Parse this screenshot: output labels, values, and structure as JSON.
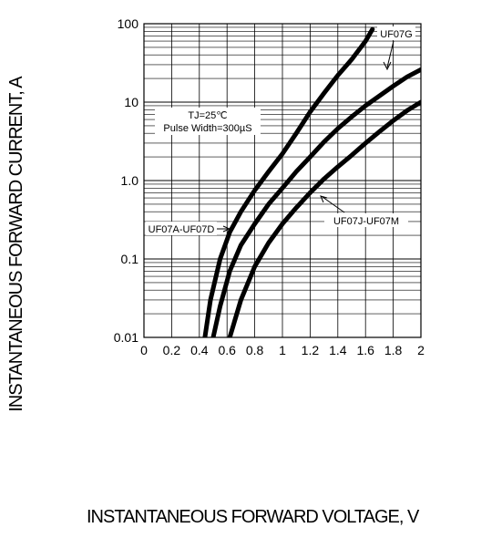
{
  "chart_data": {
    "type": "line",
    "title": "",
    "xlabel": "INSTANTANEOUS FORWARD VOLTAGE, V",
    "ylabel": "INSTANTANEOUS FORWARD CURRENT, A",
    "xlim": [
      0,
      2
    ],
    "ylim": [
      0.01,
      100
    ],
    "y_scale": "log",
    "grid": true,
    "x_ticks": [
      "0",
      "0.2",
      "0.4",
      "0.6",
      "0.8",
      "1",
      "1.2",
      "1.4",
      "1.6",
      "1.8",
      "2"
    ],
    "y_ticks": [
      "0.01",
      "0.1",
      "1.0",
      "10",
      "100"
    ],
    "conditions": [
      "TJ=25℃",
      "Pulse Width=300µS"
    ],
    "series": [
      {
        "name": "UF07A-UF07D",
        "x": [
          0.44,
          0.48,
          0.55,
          0.62,
          0.7,
          0.8,
          0.9,
          1.0,
          1.1,
          1.2,
          1.3,
          1.4,
          1.5,
          1.6,
          1.65
        ],
        "y": [
          0.01,
          0.03,
          0.1,
          0.22,
          0.4,
          0.75,
          1.3,
          2.2,
          4.0,
          7.5,
          13,
          22,
          35,
          60,
          85
        ]
      },
      {
        "name": "UF07G",
        "x": [
          0.5,
          0.55,
          0.62,
          0.7,
          0.8,
          0.9,
          1.0,
          1.1,
          1.2,
          1.3,
          1.4,
          1.5,
          1.6,
          1.7,
          1.8,
          1.9,
          2.0
        ],
        "y": [
          0.01,
          0.025,
          0.07,
          0.15,
          0.28,
          0.5,
          0.8,
          1.3,
          2.0,
          3.1,
          4.6,
          6.5,
          9.0,
          12,
          16,
          21,
          26
        ]
      },
      {
        "name": "UF07J-UF07M",
        "x": [
          0.62,
          0.7,
          0.8,
          0.9,
          1.0,
          1.1,
          1.2,
          1.3,
          1.4,
          1.5,
          1.6,
          1.7,
          1.8,
          1.9,
          2.0
        ],
        "y": [
          0.01,
          0.03,
          0.08,
          0.16,
          0.28,
          0.45,
          0.7,
          1.05,
          1.5,
          2.1,
          3.0,
          4.2,
          5.8,
          7.8,
          10
        ]
      }
    ]
  }
}
